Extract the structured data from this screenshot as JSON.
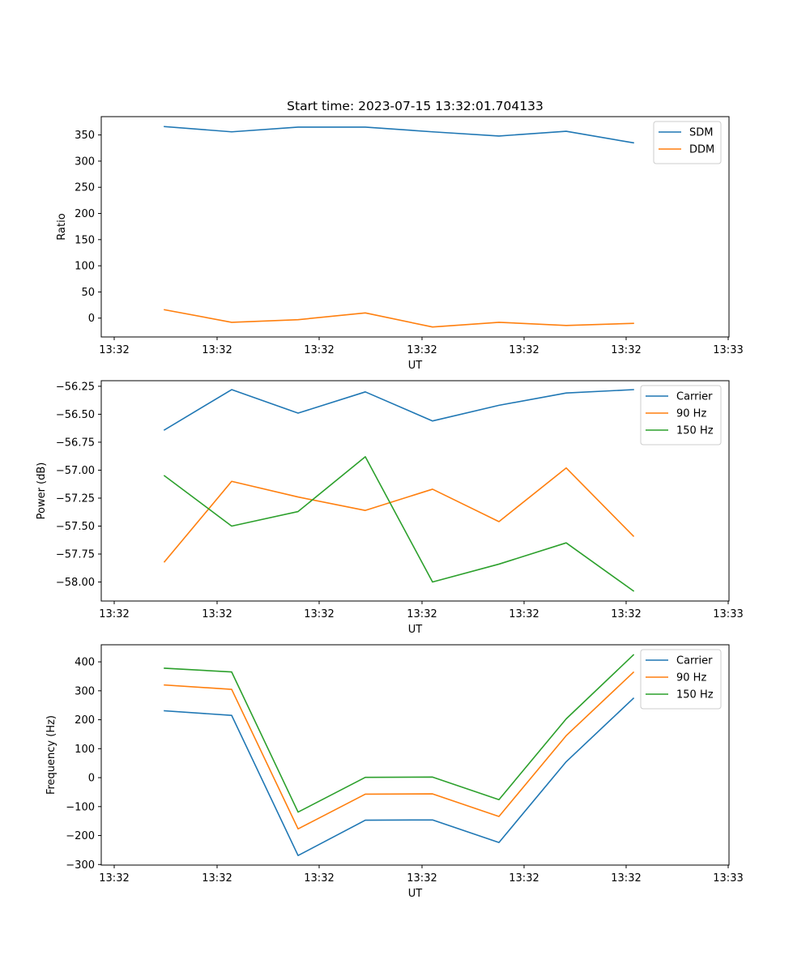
{
  "figure_title": "Start time: 2023-07-15 13:32:01.704133",
  "chart_data": [
    {
      "type": "line",
      "xlabel": "UT",
      "ylabel": "Ratio",
      "x_ticks": [
        "13:32",
        "13:32",
        "13:32",
        "13:32",
        "13:32",
        "13:32",
        "13:33"
      ],
      "y_ticks": [
        "0",
        "50",
        "100",
        "150",
        "200",
        "250",
        "300",
        "350"
      ],
      "ylim": [
        -36,
        385
      ],
      "y_tick_values": [
        0,
        50,
        100,
        150,
        200,
        250,
        300,
        350
      ],
      "legend_position": "upper-right",
      "series": [
        {
          "name": "SDM",
          "color": "#1f77b4",
          "values": [
            366,
            356,
            365,
            365,
            356,
            348,
            357,
            335
          ]
        },
        {
          "name": "DDM",
          "color": "#ff7f0e",
          "values": [
            16,
            -8,
            -3,
            10,
            -17,
            -8,
            -14,
            -10
          ]
        }
      ]
    },
    {
      "type": "line",
      "xlabel": "UT",
      "ylabel": "Power (dB)",
      "x_ticks": [
        "13:32",
        "13:32",
        "13:32",
        "13:32",
        "13:32",
        "13:32",
        "13:33"
      ],
      "y_ticks": [
        "−58.00",
        "−57.75",
        "−57.50",
        "−57.25",
        "−57.00",
        "−56.75",
        "−56.50",
        "−56.25"
      ],
      "ylim": [
        -58.17,
        -56.2
      ],
      "y_tick_values": [
        -58.0,
        -57.75,
        -57.5,
        -57.25,
        -57.0,
        -56.75,
        -56.5,
        -56.25
      ],
      "legend_position": "upper-right",
      "series": [
        {
          "name": "Carrier",
          "color": "#1f77b4",
          "values": [
            -56.64,
            -56.28,
            -56.49,
            -56.3,
            -56.56,
            -56.42,
            -56.31,
            -56.28
          ]
        },
        {
          "name": "90 Hz",
          "color": "#ff7f0e",
          "values": [
            -57.82,
            -57.1,
            -57.24,
            -57.36,
            -57.17,
            -57.46,
            -56.98,
            -57.59
          ]
        },
        {
          "name": "150 Hz",
          "color": "#2ca02c",
          "values": [
            -57.05,
            -57.5,
            -57.37,
            -56.88,
            -58.0,
            -57.84,
            -57.65,
            -58.08
          ]
        }
      ]
    },
    {
      "type": "line",
      "xlabel": "UT",
      "ylabel": "Frequency (Hz)",
      "x_ticks": [
        "13:32",
        "13:32",
        "13:32",
        "13:32",
        "13:32",
        "13:32",
        "13:33"
      ],
      "y_ticks": [
        "−300",
        "−200",
        "−100",
        "0",
        "100",
        "200",
        "300",
        "400"
      ],
      "ylim": [
        -302,
        459
      ],
      "y_tick_values": [
        -300,
        -200,
        -100,
        0,
        100,
        200,
        300,
        400
      ],
      "legend_position": "upper-right",
      "series": [
        {
          "name": "Carrier",
          "color": "#1f77b4",
          "values": [
            231,
            215,
            -269,
            -147,
            -146,
            -224,
            55,
            274
          ]
        },
        {
          "name": "90 Hz",
          "color": "#ff7f0e",
          "values": [
            320,
            305,
            -177,
            -57,
            -56,
            -134,
            145,
            364
          ]
        },
        {
          "name": "150 Hz",
          "color": "#2ca02c",
          "values": [
            378,
            365,
            -119,
            1,
            2,
            -76,
            203,
            424
          ]
        }
      ]
    }
  ]
}
